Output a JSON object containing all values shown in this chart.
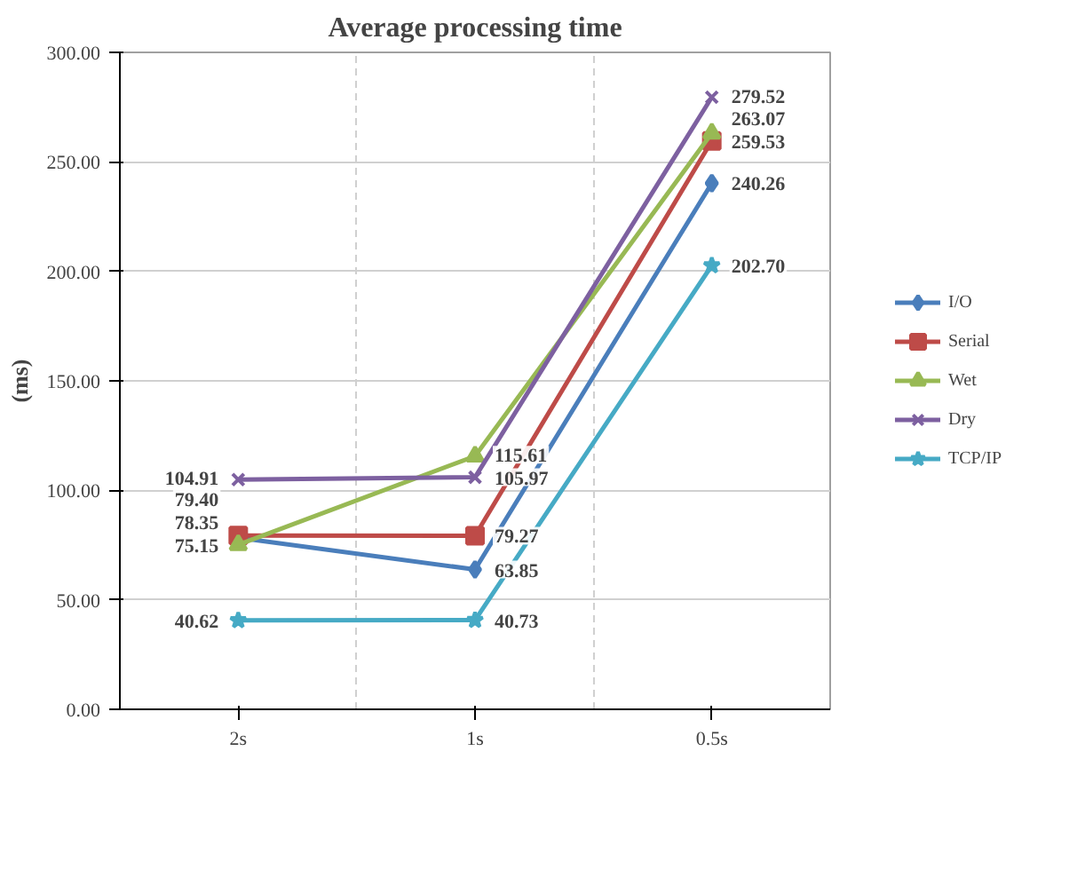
{
  "chart_data": {
    "type": "line",
    "title": "Average processing time",
    "ylabel": "(ms)",
    "categories": [
      "2s",
      "1s",
      "0.5s"
    ],
    "ylim": [
      0,
      300
    ],
    "yticks": [
      {
        "value": 0,
        "label": "0.00"
      },
      {
        "value": 50,
        "label": "50.00"
      },
      {
        "value": 100,
        "label": "100.00"
      },
      {
        "value": 150,
        "label": "150.00"
      },
      {
        "value": 200,
        "label": "200.00"
      },
      {
        "value": 250,
        "label": "250.00"
      },
      {
        "value": 300,
        "label": "300.00"
      }
    ],
    "grid": true,
    "legend": "right",
    "series": [
      {
        "name": "I/O",
        "color": "#4a7ebb",
        "marker": "diamond",
        "values": [
          78.35,
          63.85,
          240.26
        ],
        "value_labels": [
          "78.35",
          "63.85",
          "240.26"
        ]
      },
      {
        "name": "Serial",
        "color": "#be4b48",
        "marker": "square",
        "values": [
          79.4,
          79.27,
          259.53
        ],
        "value_labels": [
          "79.40",
          "79.27",
          "259.53"
        ]
      },
      {
        "name": "Wet",
        "color": "#98b954",
        "marker": "triangle",
        "values": [
          75.15,
          115.61,
          263.07
        ],
        "value_labels": [
          "75.15",
          "115.61",
          "263.07"
        ]
      },
      {
        "name": "Dry",
        "color": "#7d60a0",
        "marker": "cross",
        "values": [
          104.91,
          105.97,
          279.52
        ],
        "value_labels": [
          "104.91",
          "105.97",
          "279.52"
        ]
      },
      {
        "name": "TCP/IP",
        "color": "#46aac5",
        "marker": "star",
        "values": [
          40.62,
          40.73,
          202.7
        ],
        "value_labels": [
          "40.62",
          "40.73",
          "202.70"
        ]
      }
    ]
  }
}
